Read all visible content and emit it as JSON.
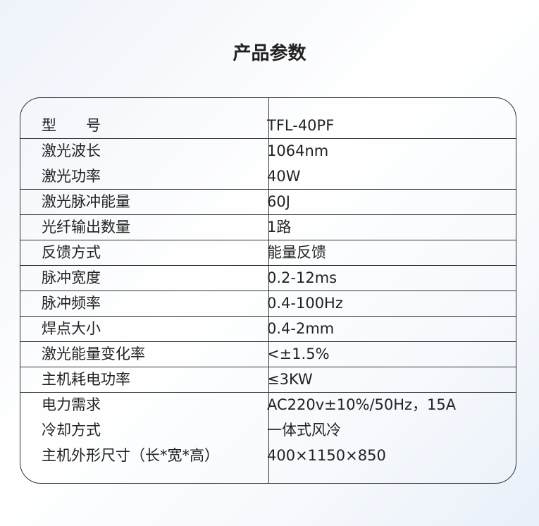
{
  "title": "产品参数",
  "table": {
    "rows": [
      [
        "型　　号",
        "TFL-40PF"
      ],
      [
        "激光波长",
        "1064nm"
      ],
      [
        "激光功率",
        "40W"
      ],
      [
        "激光脉冲能量",
        "60J"
      ],
      [
        "光纤输出数量",
        "1路"
      ],
      [
        "反馈方式",
        "能量反馈"
      ],
      [
        "脉冲宽度",
        "0.2-12ms"
      ],
      [
        "脉冲频率",
        "0.4-100Hz"
      ],
      [
        "焊点大小",
        "0.4-2mm"
      ],
      [
        "激光能量变化率",
        "<±1.5%"
      ],
      [
        "主机耗电功率",
        "≤3KW"
      ],
      [
        "电力需求",
        "AC220v±10%/50Hz，15A"
      ],
      [
        "冷却方式",
        "一体式风冷"
      ],
      [
        "主机外形尺寸（长*宽*高）",
        "400×1150×850"
      ]
    ]
  }
}
